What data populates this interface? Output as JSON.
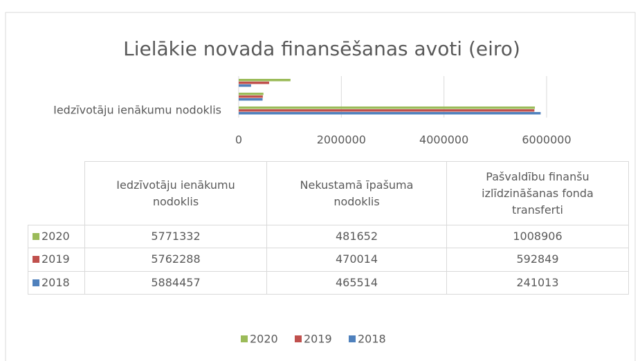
{
  "chart_data": {
    "type": "bar",
    "orientation": "horizontal",
    "title": "Lielākie novada finansēšanas avoti (eiro)",
    "categories": [
      "Iedzīvotāju ienākumu nodoklis",
      "Nekustamā īpašuma nodoklis",
      "Pašvaldību finanšu izlīdzināšanas fonda transferti"
    ],
    "series": [
      {
        "name": "2020",
        "color": "#9bbb59",
        "values": [
          5771332,
          481652,
          1008906
        ]
      },
      {
        "name": "2019",
        "color": "#c0504d",
        "values": [
          5762288,
          470014,
          592849
        ]
      },
      {
        "name": "2018",
        "color": "#4f81bd",
        "values": [
          5884457,
          465514,
          241013
        ]
      }
    ],
    "xlim": [
      0,
      6000000
    ],
    "xticks": [
      0,
      2000000,
      4000000,
      6000000
    ],
    "grid": true,
    "legend": "bottom",
    "data_table": true
  }
}
